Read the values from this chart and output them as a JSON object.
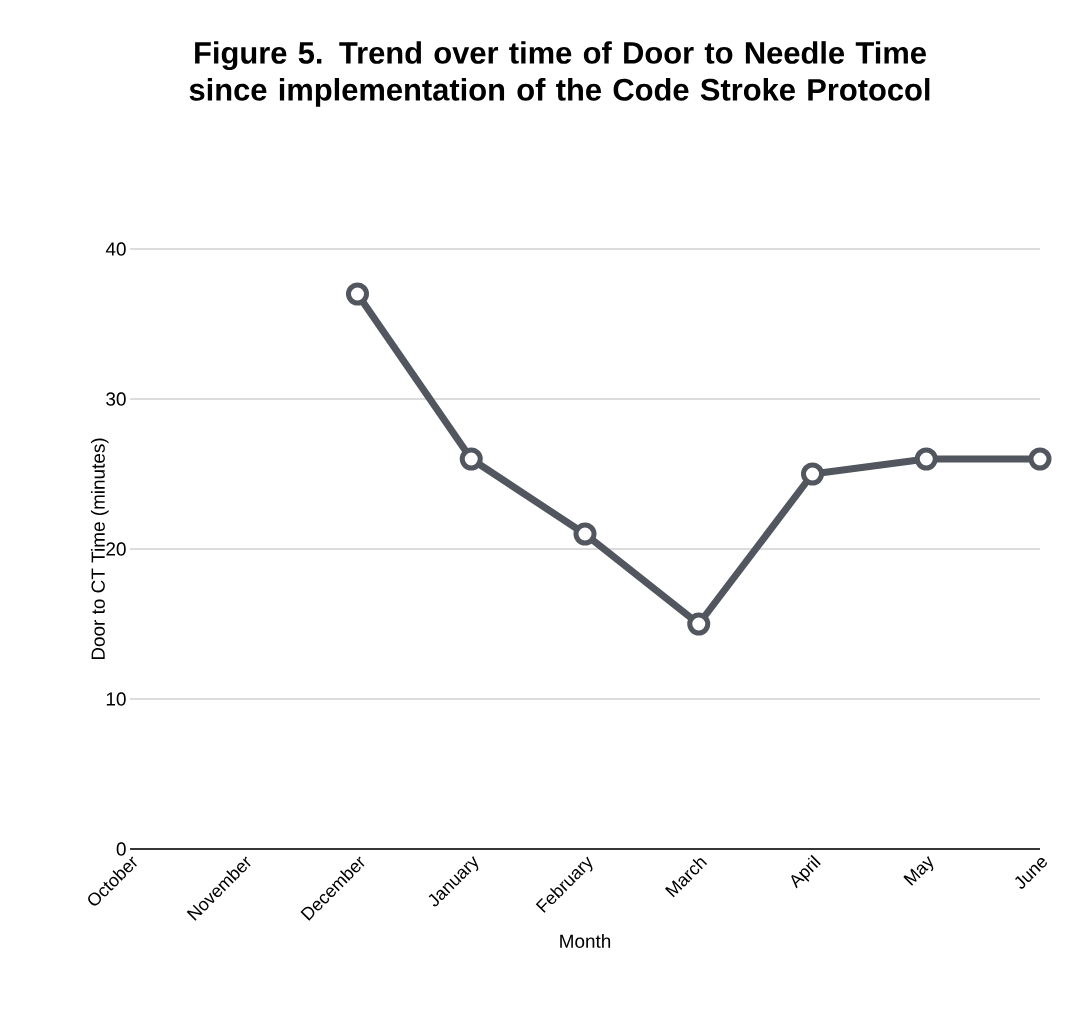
{
  "chart_data": {
    "type": "line",
    "title": "Figure 5. Trend over time of Door to Needle Time since implementation of the Code Stroke Protocol",
    "xlabel": "Month",
    "ylabel": "Door to CT Time (minutes)",
    "categories": [
      "October",
      "November",
      "December",
      "January",
      "February",
      "March",
      "April",
      "May",
      "June"
    ],
    "series": [
      {
        "color": "#52565e",
        "values": [
          null,
          null,
          37,
          26,
          21,
          15,
          25,
          26,
          26
        ]
      }
    ],
    "ylim": [
      0,
      40
    ],
    "yticks": [
      0,
      10,
      20,
      30,
      40
    ],
    "grid": "y",
    "marker": "circle",
    "line_style": "solid"
  }
}
